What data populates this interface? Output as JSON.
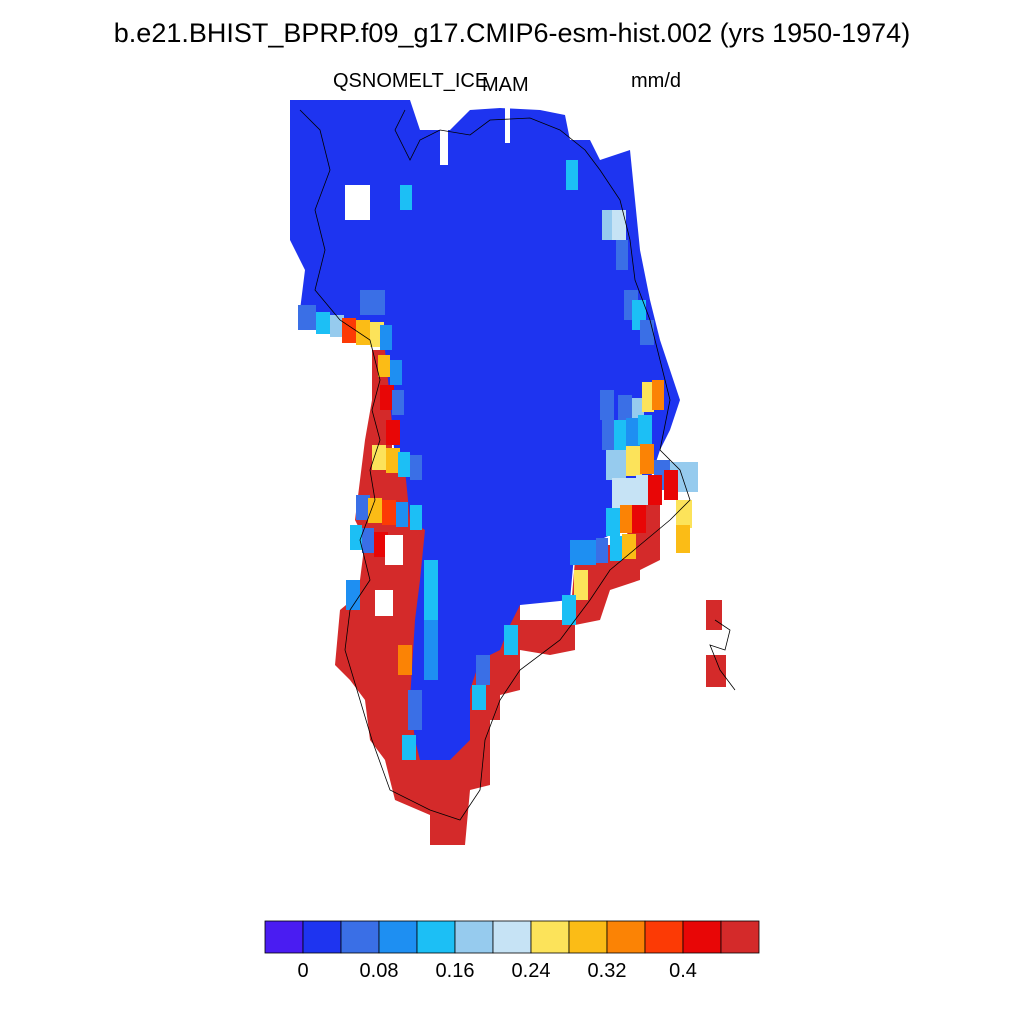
{
  "title": "b.e21.BHIST_BPRP.f09_g17.CMIP6-esm-hist.002 (yrs 1950-1974)",
  "left_subtitle": "QSNOMELT_ICE",
  "center_subtitle": "MAM",
  "right_subtitle": "mm/d",
  "colorbar": {
    "colors": [
      "#4a1cf2",
      "#1e34f0",
      "#3a6fe6",
      "#1e8ff2",
      "#1cbff5",
      "#96cbee",
      "#c6e3f5",
      "#fce35a",
      "#fbbc16",
      "#fb8305",
      "#fc3a05",
      "#e80606",
      "#d42a2a"
    ],
    "tick_labels": [
      "0",
      "0.08",
      "0.16",
      "0.24",
      "0.32",
      "0.4"
    ]
  },
  "map_palette": {
    "ice": "#1e34f0",
    "melt": "#d42a2a",
    "coast": "#000000"
  }
}
